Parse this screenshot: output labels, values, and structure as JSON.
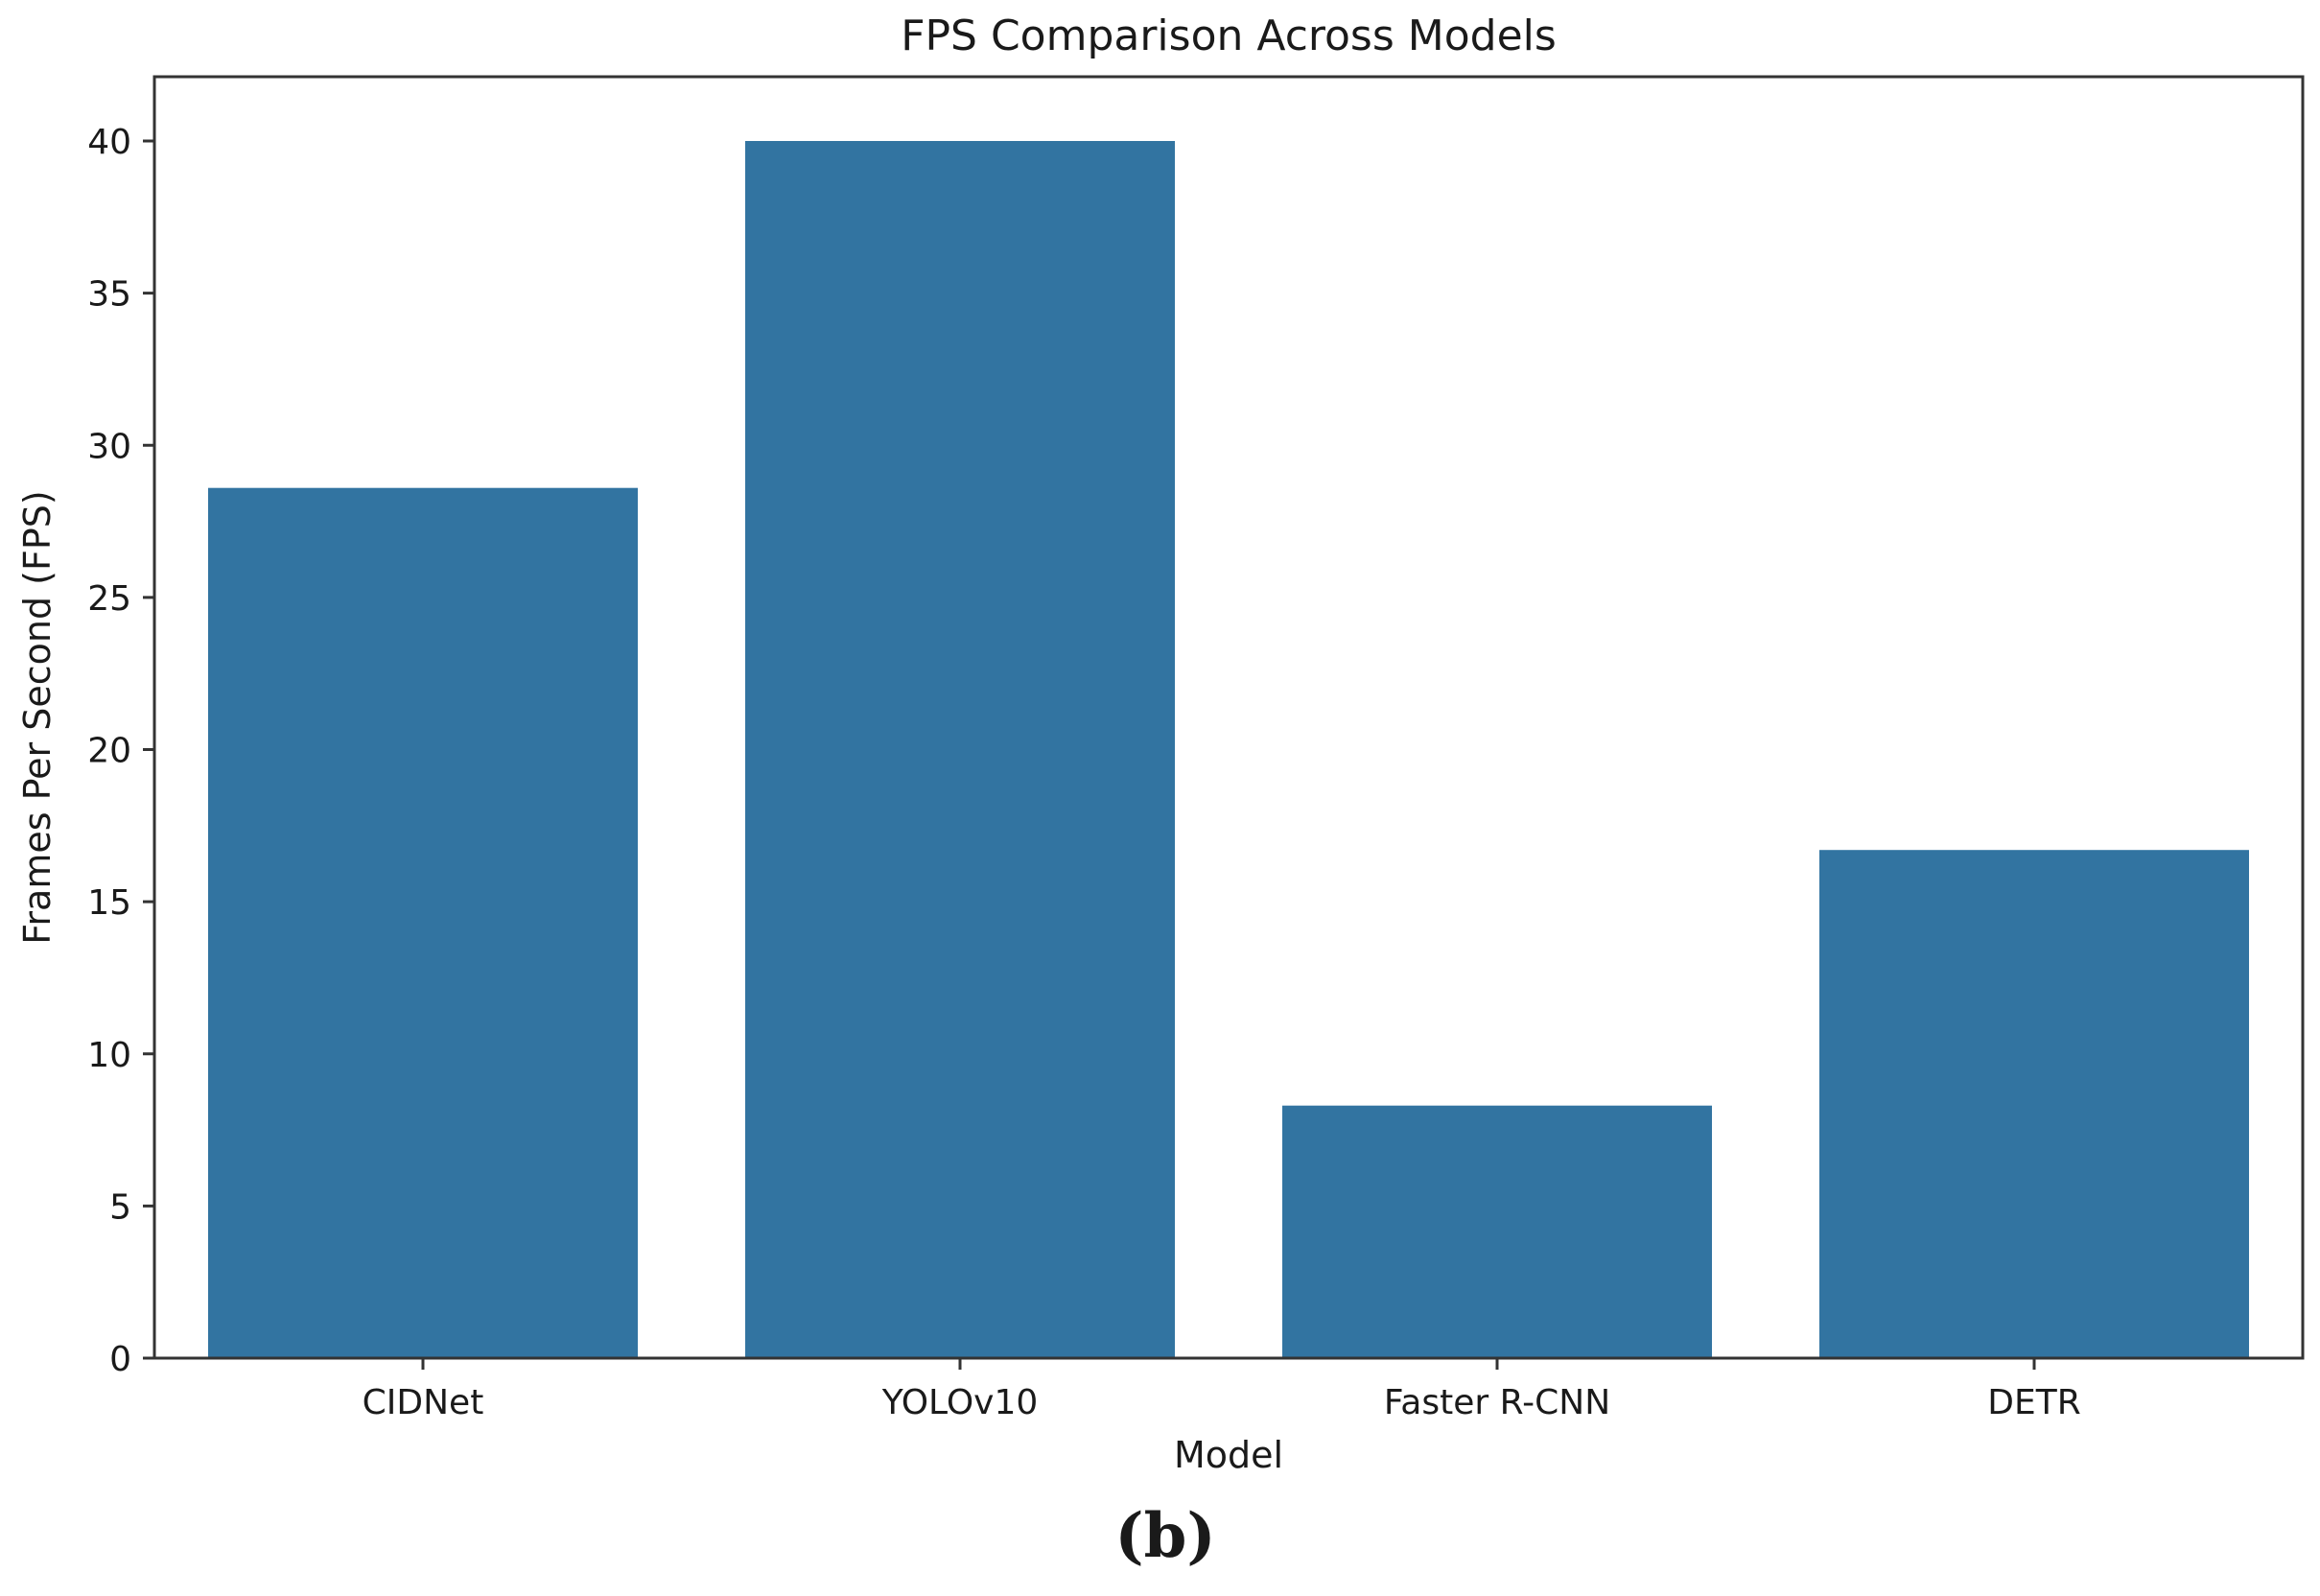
{
  "chart_data": {
    "type": "bar",
    "title": "FPS Comparison Across Models",
    "xlabel": "Model",
    "ylabel": "Frames Per Second (FPS)",
    "categories": [
      "CIDNet",
      "YOLOv10",
      "Faster R-CNN",
      "DETR"
    ],
    "values": [
      28.6,
      40.0,
      8.3,
      16.7
    ],
    "ylim": [
      0,
      42
    ],
    "yticks": [
      0,
      5,
      10,
      15,
      20,
      25,
      30,
      35,
      40
    ],
    "grid": false,
    "legend": "none",
    "bar_color": "#3274a1"
  },
  "panel_label": "(b)"
}
